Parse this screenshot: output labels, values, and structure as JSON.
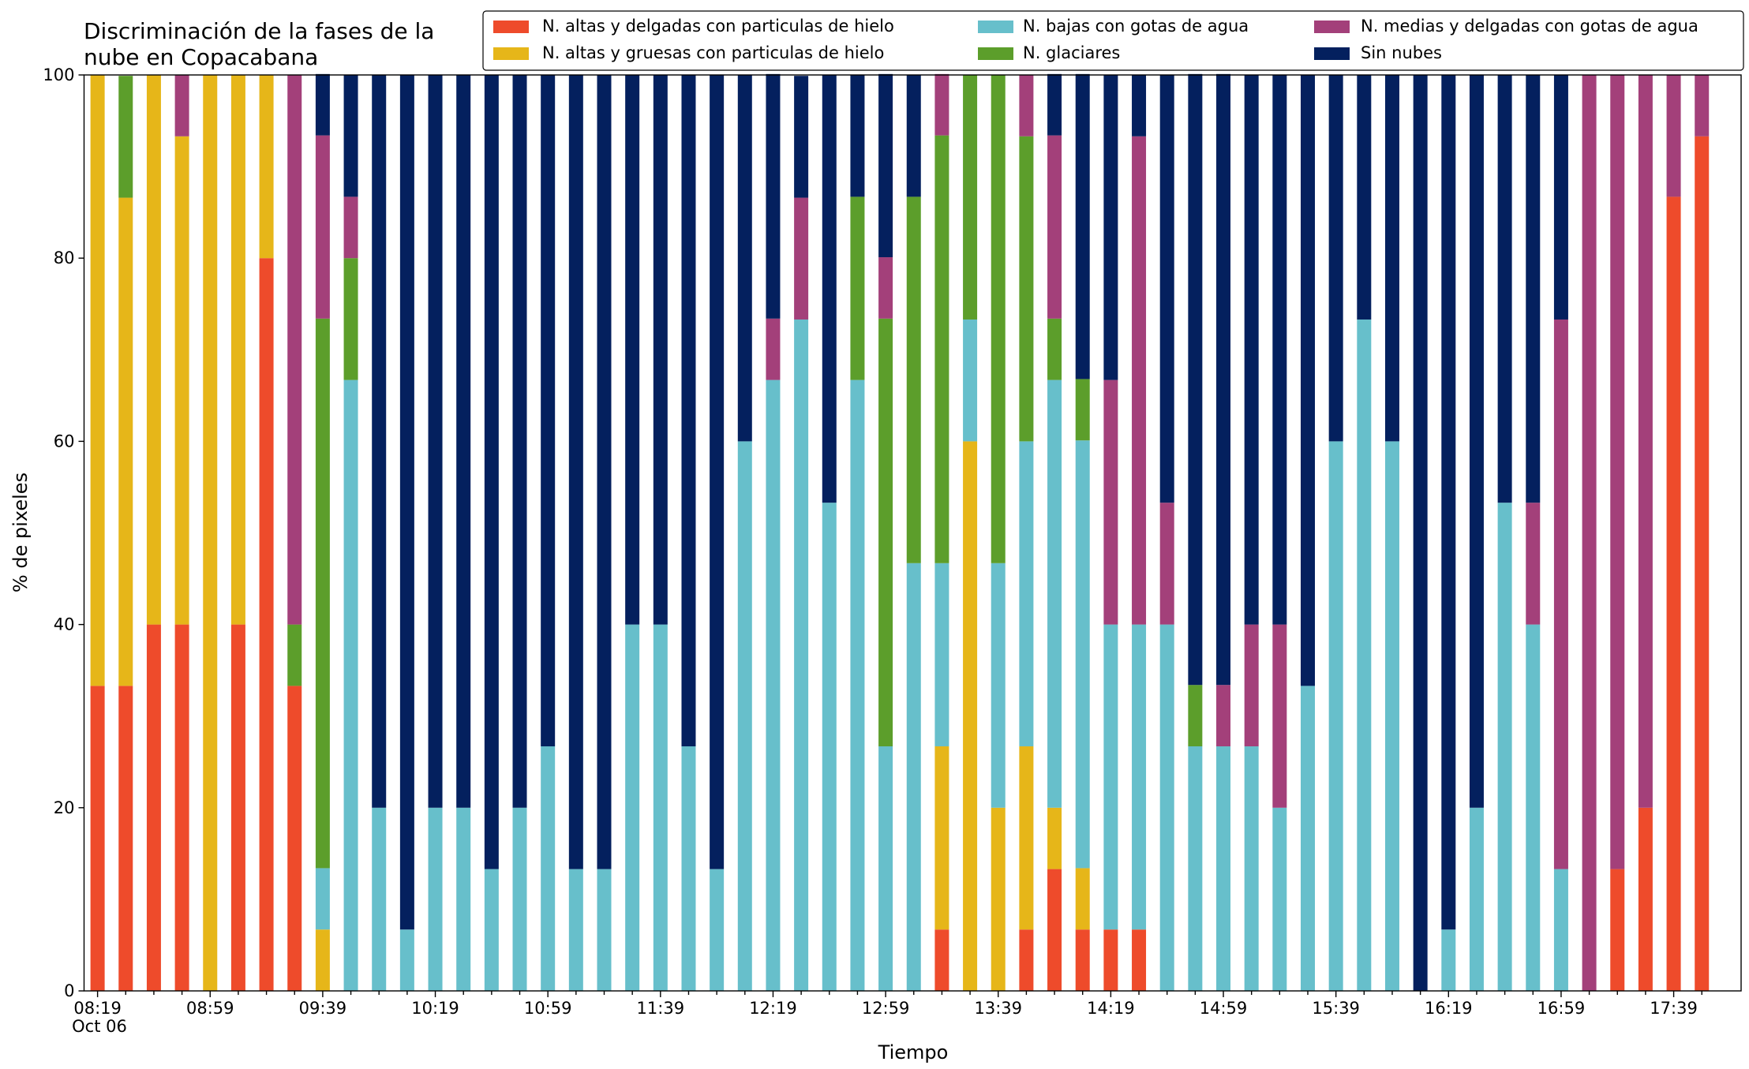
{
  "chart_data": {
    "type": "stacked_bar",
    "title": [
      "Discriminación de la fases de la",
      "nube en Copacabana"
    ],
    "xlabel": "Tiempo",
    "ylabel": "% de pixeles",
    "date_label": "Oct 06",
    "categories": [
      "08:19",
      null,
      null,
      null,
      "08:59",
      null,
      null,
      null,
      "09:39",
      null,
      null,
      null,
      "10:19",
      null,
      null,
      null,
      "10:59",
      null,
      null,
      null,
      "11:39",
      null,
      null,
      null,
      "12:19",
      null,
      null,
      null,
      "12:59",
      null,
      null,
      null,
      "13:39",
      null,
      null,
      null,
      "14:19",
      null,
      null,
      null,
      "14:59",
      null,
      null,
      null,
      "15:39",
      null,
      null,
      null,
      "16:19",
      null,
      null,
      null,
      "16:59",
      null,
      null,
      null,
      "17:39",
      null
    ],
    "ylim": [
      0,
      100
    ],
    "yticks": [
      0,
      20,
      40,
      60,
      80,
      100
    ],
    "legend": "top-right",
    "series": [
      {
        "name": "N. altas y delgadas con particulas de hielo",
        "color": "#ee4b2b",
        "values": [
          33.3,
          33.3,
          40,
          40,
          0,
          40,
          80,
          33.3,
          0,
          0,
          0,
          0,
          0,
          0,
          0,
          0,
          0,
          0,
          0,
          0,
          0,
          0,
          0,
          0,
          0,
          0,
          0,
          0,
          0,
          0,
          6.7,
          0,
          0,
          6.7,
          13.3,
          6.7,
          6.7,
          6.7,
          0,
          0,
          0,
          0,
          0,
          0,
          0,
          0,
          0,
          0,
          0,
          0,
          0,
          0,
          0,
          0,
          13.3,
          20,
          86.7,
          93.3
        ]
      },
      {
        "name": "N. altas y gruesas con particulas de hielo",
        "color": "#e6b619",
        "values": [
          66.7,
          53.3,
          60,
          53.3,
          100,
          60,
          20,
          0,
          6.7,
          0,
          0,
          0,
          0,
          0,
          0,
          0,
          0,
          0,
          0,
          0,
          0,
          0,
          0,
          0,
          0,
          0,
          0,
          0,
          0,
          0,
          20,
          60,
          20,
          20,
          6.7,
          6.7,
          0,
          0,
          0,
          0,
          0,
          0,
          0,
          0,
          0,
          0,
          0,
          0,
          0,
          0,
          0,
          0,
          0,
          0,
          0,
          0,
          0,
          0
        ]
      },
      {
        "name": "N. bajas con gotas de agua",
        "color": "#67bfcb",
        "values": [
          0,
          0,
          0,
          0,
          0,
          0,
          0,
          0,
          6.7,
          66.7,
          20,
          6.7,
          20,
          20,
          13.3,
          20,
          26.7,
          13.3,
          13.3,
          40,
          40,
          26.7,
          13.3,
          60,
          66.7,
          73.3,
          53.3,
          66.7,
          26.7,
          46.7,
          20,
          13.3,
          26.7,
          33.3,
          46.7,
          46.7,
          33.3,
          33.3,
          40,
          26.7,
          26.7,
          26.7,
          20,
          33.3,
          60,
          73.3,
          60,
          0,
          6.7,
          20,
          53.3,
          40,
          13.3,
          0,
          0,
          0,
          0,
          0
        ]
      },
      {
        "name": "N. glaciares",
        "color": "#5c9e2b",
        "values": [
          0,
          13.3,
          0,
          0,
          0,
          0,
          0,
          6.7,
          60,
          13.3,
          0,
          0,
          0,
          0,
          0,
          0,
          0,
          0,
          0,
          0,
          0,
          0,
          0,
          0,
          0,
          0,
          0,
          20,
          46.7,
          40,
          46.7,
          26.7,
          53.3,
          33.3,
          6.7,
          6.7,
          0,
          0,
          0,
          6.7,
          0,
          0,
          0,
          0,
          0,
          0,
          0,
          0,
          0,
          0,
          0,
          0,
          0,
          0,
          0,
          0,
          0,
          0
        ]
      },
      {
        "name": "N. medias y delgadas con gotas de agua",
        "color": "#a3407a",
        "values": [
          0,
          0,
          0,
          6.7,
          0,
          0,
          0,
          60,
          20,
          6.7,
          0,
          0,
          0,
          0,
          0,
          0,
          0,
          0,
          0,
          0,
          0,
          0,
          0,
          0,
          6.7,
          13.3,
          0,
          0,
          6.7,
          0,
          6.7,
          0,
          0,
          6.7,
          20,
          0,
          26.7,
          53.3,
          13.3,
          0,
          6.7,
          13.3,
          20,
          0,
          0,
          0,
          0,
          0,
          0,
          0,
          0,
          13.3,
          60,
          100,
          86.7,
          80,
          13.3,
          6.7
        ]
      },
      {
        "name": "Sin nubes",
        "color": "#04205e",
        "values": [
          0,
          0,
          0,
          0,
          0,
          0,
          0,
          0,
          6.7,
          13.3,
          80,
          93.3,
          80,
          80,
          86.7,
          80,
          73.3,
          86.7,
          86.7,
          60,
          60,
          73.3,
          86.7,
          40,
          26.7,
          13.3,
          46.7,
          13.3,
          20,
          13.3,
          0,
          0,
          0,
          0,
          6.7,
          33.3,
          33.3,
          6.7,
          46.7,
          66.7,
          66.7,
          60,
          60,
          66.7,
          40,
          26.7,
          40,
          100,
          93.3,
          80,
          46.7,
          46.7,
          26.7,
          0,
          0,
          0,
          0,
          0
        ]
      }
    ]
  }
}
